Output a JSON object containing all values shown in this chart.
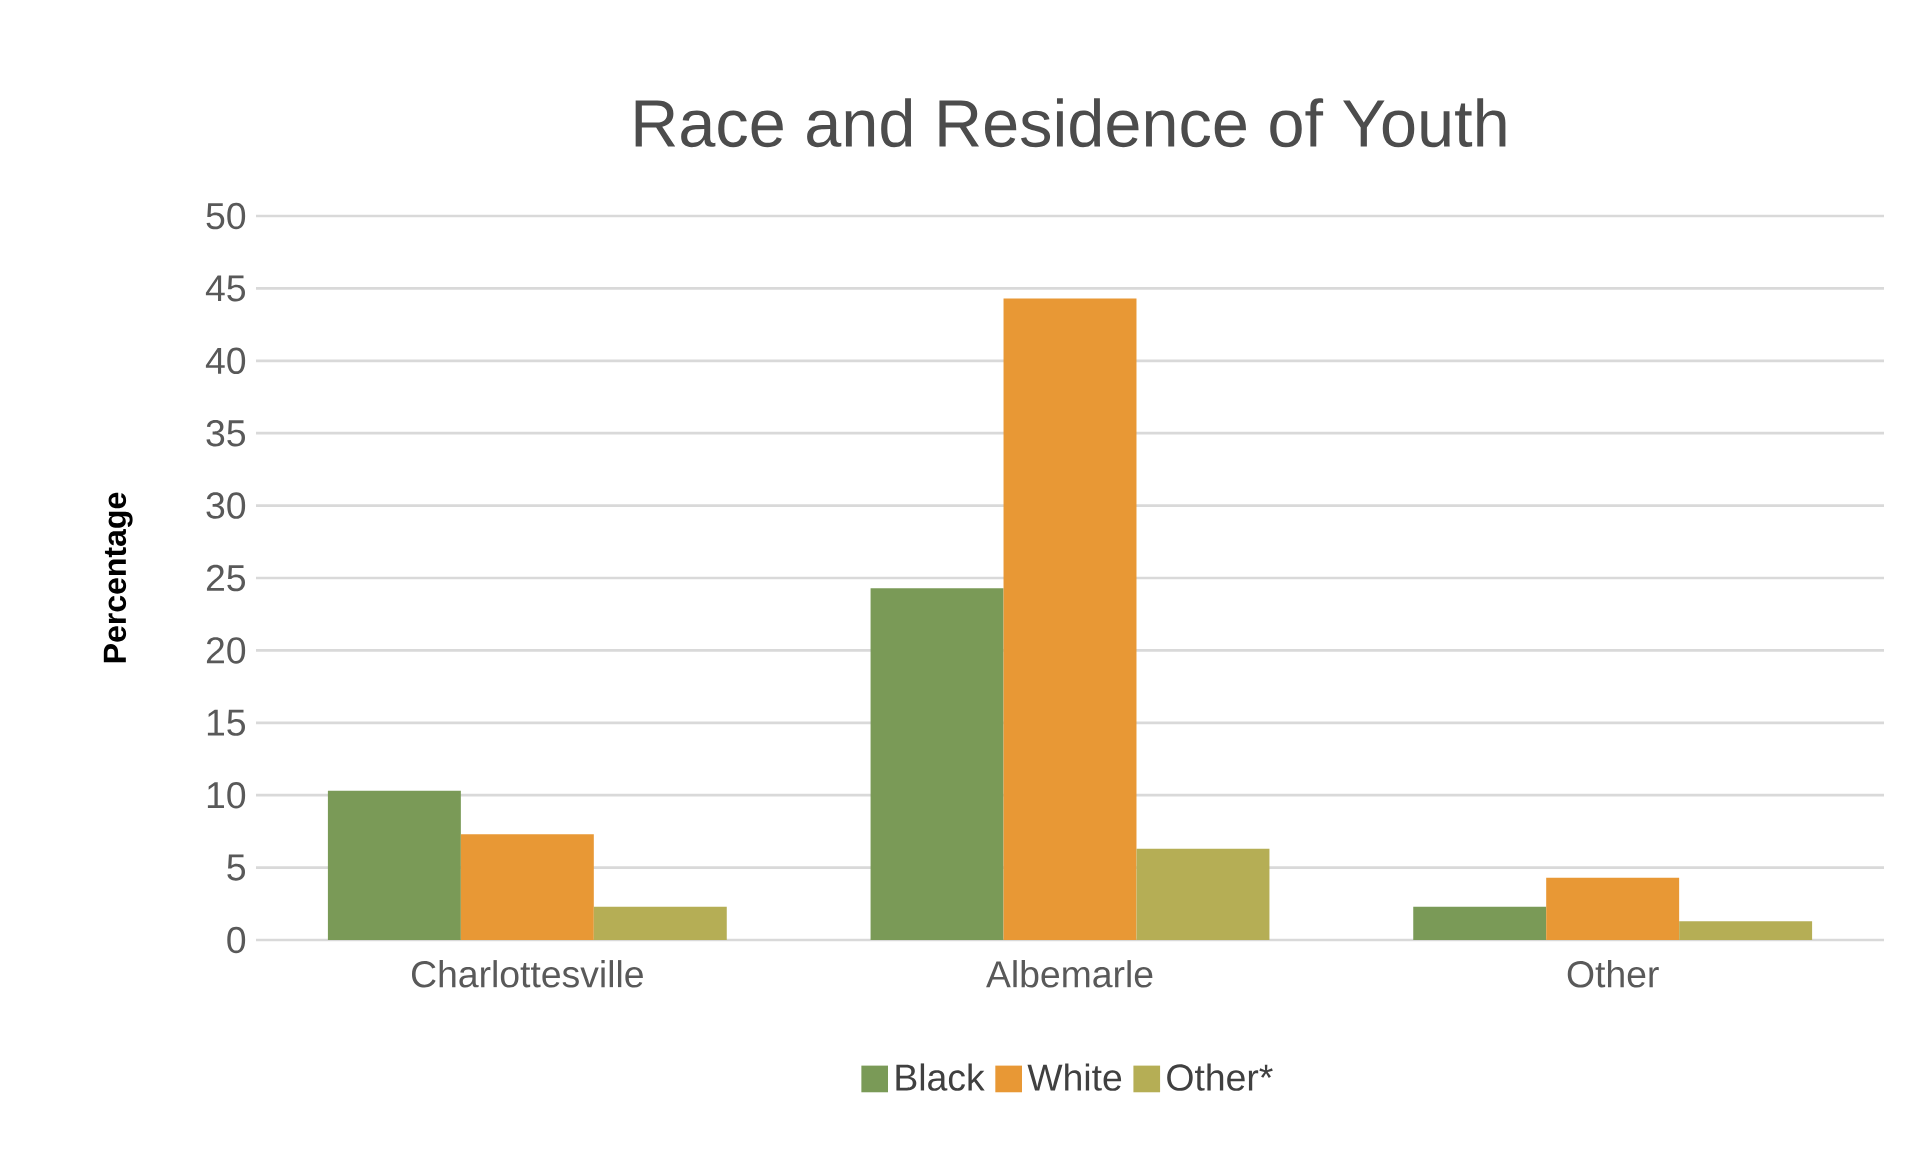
{
  "chart_data": {
    "type": "bar",
    "title": "Race and Residence of Youth",
    "ylabel": "Percentage",
    "categories": [
      "Charlottesville",
      "Albemarle",
      "Other"
    ],
    "series": [
      {
        "name": "Black",
        "color": "#7a9a57",
        "values": [
          10.3,
          24.3,
          2.3
        ]
      },
      {
        "name": "White",
        "color": "#e89835",
        "values": [
          7.3,
          44.3,
          4.3
        ]
      },
      {
        "name": "Other*",
        "color": "#b5ae55",
        "values": [
          2.3,
          6.3,
          1.3
        ]
      }
    ],
    "ylim": [
      0,
      50
    ],
    "yticks": [
      0,
      5,
      10,
      15,
      20,
      25,
      30,
      35,
      40,
      45,
      50
    ],
    "grid": "y",
    "legend": "bottom"
  }
}
